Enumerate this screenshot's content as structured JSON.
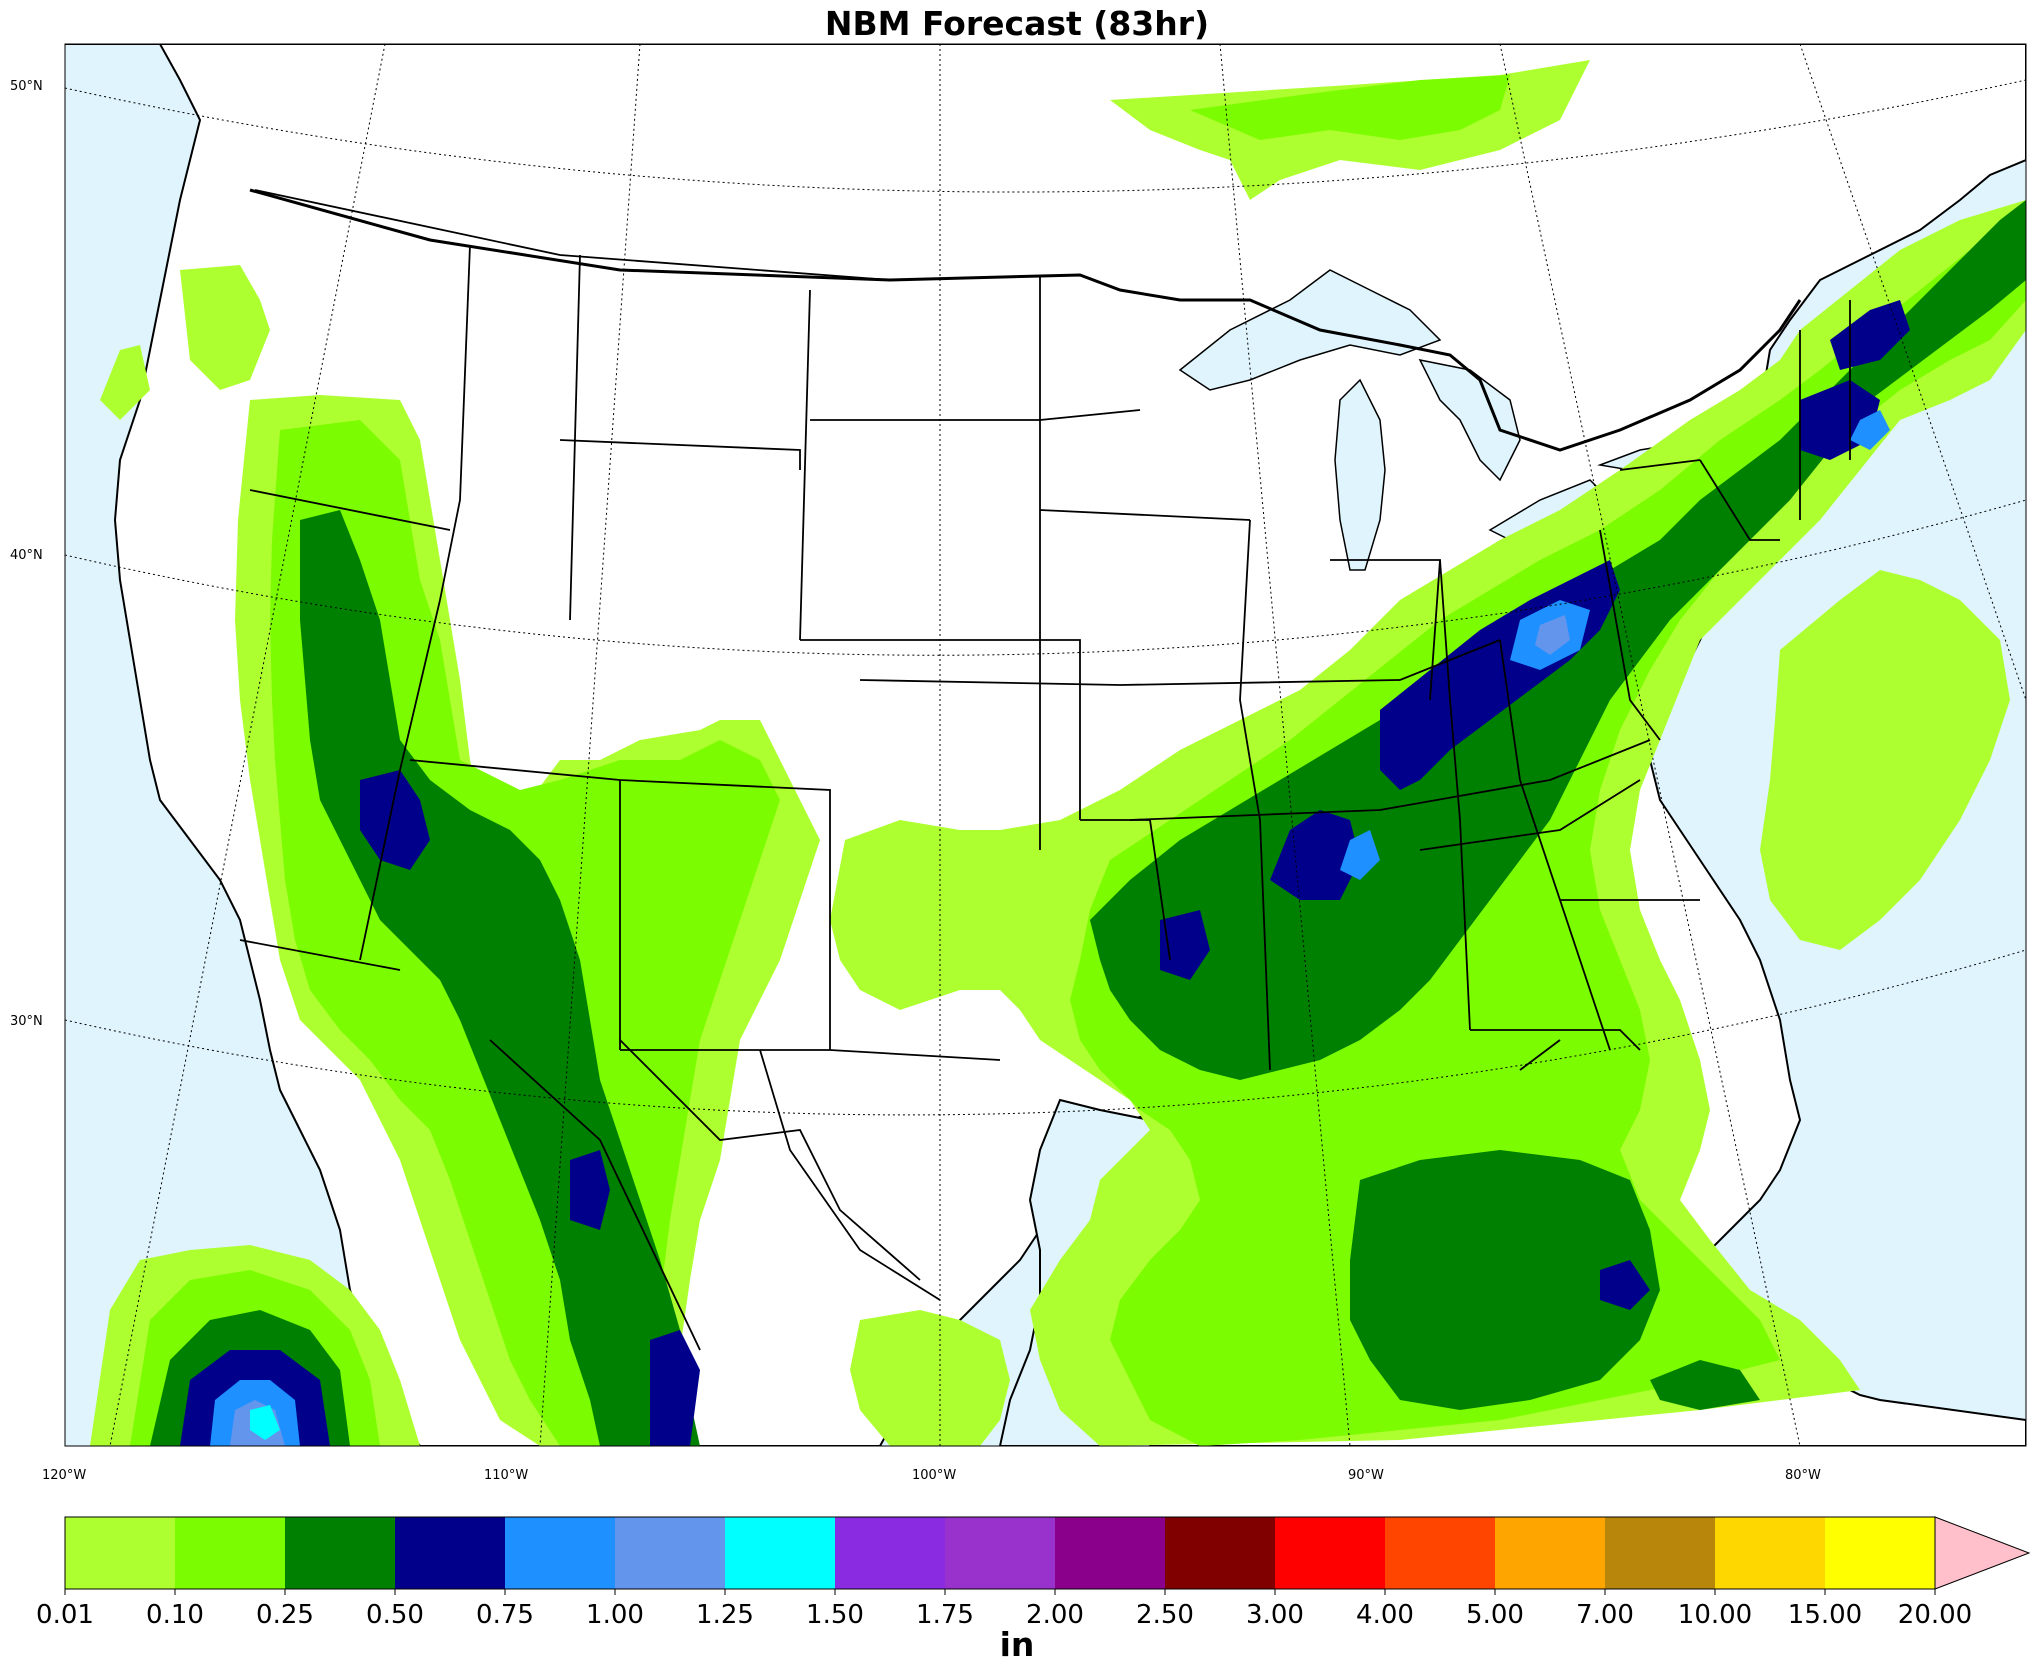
{
  "title": "NBM Forecast (83hr)",
  "lat_labels": [
    "50°N",
    "40°N",
    "30°N"
  ],
  "lon_labels": [
    "120°W",
    "110°W",
    "100°W",
    "90°W",
    "80°W"
  ],
  "colorbar": {
    "unit": "in",
    "ticks": [
      "0.01",
      "0.10",
      "0.25",
      "0.50",
      "0.75",
      "1.00",
      "1.25",
      "1.50",
      "1.75",
      "2.00",
      "2.50",
      "3.00",
      "4.00",
      "5.00",
      "7.00",
      "10.00",
      "15.00",
      "20.00"
    ],
    "colors": [
      "#adff2f",
      "#7cfc00",
      "#008000",
      "#00008b",
      "#1e90ff",
      "#6495ed",
      "#00ffff",
      "#8a2be2",
      "#9932cc",
      "#8b008b",
      "#800000",
      "#ff0000",
      "#ff4500",
      "#ffa500",
      "#b8860b",
      "#ffd700",
      "#ffff00"
    ],
    "extend_color": "#ffc0cb"
  },
  "colors": {
    "water": "#dff4fc",
    "land": "#ffffff"
  }
}
